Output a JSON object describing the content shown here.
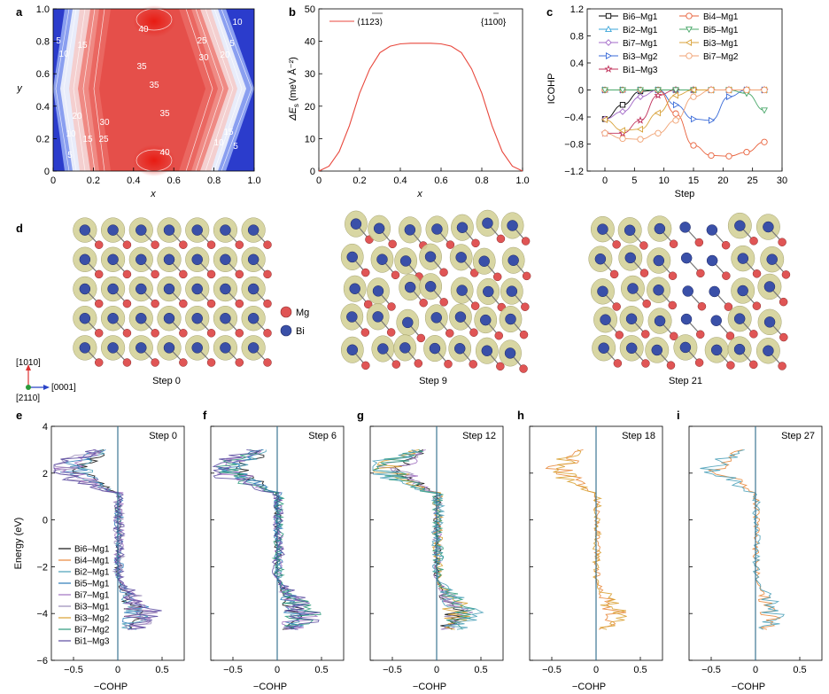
{
  "panels": {
    "a": {
      "label": "a",
      "xlabel": "x",
      "ylabel": "y",
      "xticks": [
        "0",
        "0.2",
        "0.4",
        "0.6",
        "0.8",
        "1.0"
      ],
      "yticks": [
        "0",
        "0.2",
        "0.4",
        "0.6",
        "0.8",
        "1.0"
      ],
      "contour_labels": [
        "40",
        "5",
        "15",
        "10",
        "35",
        "35",
        "35",
        "25",
        "20",
        "30",
        "10",
        "5",
        "20",
        "30",
        "10",
        "15",
        "25",
        "5",
        "40",
        "15",
        "10",
        "5"
      ]
    },
    "b": {
      "label": "b",
      "xlabel": "x",
      "ylabel": "ΔE_s (meV Å⁻²)",
      "ylabel_main": "ΔE",
      "ylabel_sub": "s",
      "ylabel_unit": " (meV Å⁻²)",
      "xticks": [
        "0",
        "0.2",
        "0.4",
        "0.6",
        "0.8",
        "1.0"
      ],
      "yticks": [
        "0",
        "10",
        "20",
        "30",
        "40",
        "50"
      ],
      "legend_line": "⟨1123⟩",
      "legend_right": "{1100}"
    },
    "c": {
      "label": "c",
      "xlabel": "Step",
      "ylabel": "ICOHP",
      "xticks": [
        "0",
        "5",
        "10",
        "15",
        "20",
        "25",
        "30"
      ],
      "yticks": [
        "1.2",
        "0.8",
        "0.4",
        "0",
        "−0.4",
        "−0.8",
        "−1.2"
      ]
    },
    "d": {
      "label": "d",
      "legend_mg": "Mg",
      "legend_bi": "Bi",
      "axis_up": "[1010]",
      "axis_right": "[0001]",
      "axis_out": "[2110]",
      "steps": [
        "Step 0",
        "Step 9",
        "Step 21"
      ]
    },
    "cohp": {
      "xlabel": "−COHP",
      "ylabel": "Energy (eV)",
      "yticks": [
        "4",
        "2",
        "0",
        "−2",
        "−4",
        "−6"
      ],
      "xticks": [
        "−0.5",
        "0",
        "0.5"
      ],
      "legend": [
        "Bi6–Mg1",
        "Bi4–Mg1",
        "Bi2–Mg1",
        "Bi5–Mg1",
        "Bi7–Mg1",
        "Bi3–Mg1",
        "Bi3–Mg2",
        "Bi7–Mg2",
        "Bi1–Mg3"
      ],
      "panels": [
        {
          "label": "e",
          "step": "Step 0"
        },
        {
          "label": "f",
          "step": "Step 6"
        },
        {
          "label": "g",
          "step": "Step 12"
        },
        {
          "label": "h",
          "step": "Step 18"
        },
        {
          "label": "i",
          "step": "Step 27"
        }
      ]
    }
  },
  "colors": {
    "red": "#e8473c",
    "blue": "#1f3fd6",
    "mg": "#e05555",
    "bi": "#3a50a8",
    "isosurface": "#d4d29a"
  },
  "chart_data": [
    {
      "type": "heatmap",
      "title": "",
      "xlabel": "x",
      "ylabel": "y",
      "xlim": [
        0,
        1
      ],
      "ylim": [
        0,
        1
      ],
      "contour_levels": [
        5,
        10,
        15,
        20,
        25,
        30,
        35,
        40
      ]
    },
    {
      "type": "line",
      "xlabel": "x",
      "ylabel": "ΔE_s (meV Å⁻²)",
      "xlim": [
        0,
        1
      ],
      "ylim": [
        0,
        50
      ],
      "series": [
        {
          "name": "⟨1123⟩",
          "x": [
            0,
            0.05,
            0.1,
            0.15,
            0.2,
            0.25,
            0.3,
            0.35,
            0.4,
            0.45,
            0.5,
            0.55,
            0.6,
            0.65,
            0.7,
            0.75,
            0.8,
            0.85,
            0.9,
            0.95,
            1.0
          ],
          "y": [
            0,
            1.5,
            6,
            14,
            24,
            31.5,
            36.5,
            38.5,
            39.2,
            39.4,
            39.4,
            39.4,
            39.2,
            38.5,
            36.5,
            31.5,
            24,
            14,
            6,
            1.5,
            0
          ]
        }
      ]
    },
    {
      "type": "line",
      "xlabel": "Step",
      "ylabel": "ICOHP",
      "xlim": [
        -3,
        30
      ],
      "ylim": [
        -1.2,
        1.2
      ],
      "series": [
        {
          "name": "Bi6–Mg1",
          "color": "#000000",
          "marker": "square",
          "x": [
            0,
            3,
            6,
            9,
            12,
            15,
            18,
            21,
            24,
            27
          ],
          "y": [
            -0.43,
            -0.22,
            -0.02,
            0,
            0,
            0,
            0,
            0,
            0,
            0
          ]
        },
        {
          "name": "Bi2–Mg1",
          "color": "#3aa5d8",
          "marker": "triangle-up",
          "x": [
            0,
            3,
            6,
            9,
            12,
            15,
            18,
            21,
            24,
            27
          ],
          "y": [
            0,
            0,
            0,
            0,
            0,
            0,
            0,
            0,
            0,
            0
          ]
        },
        {
          "name": "Bi7–Mg1",
          "color": "#a36ac8",
          "marker": "diamond",
          "x": [
            0,
            3,
            6,
            9,
            12,
            15,
            18,
            21,
            24,
            27
          ],
          "y": [
            -0.43,
            -0.32,
            -0.1,
            0,
            0,
            0,
            0,
            0,
            0,
            0
          ]
        },
        {
          "name": "Bi3–Mg2",
          "color": "#3a6bd8",
          "marker": "triangle-right",
          "x": [
            0,
            3,
            6,
            9,
            12,
            15,
            18,
            21,
            24,
            27
          ],
          "y": [
            0,
            0,
            0,
            0,
            -0.22,
            -0.43,
            -0.45,
            -0.1,
            0,
            0
          ]
        },
        {
          "name": "Bi1–Mg3",
          "color": "#c0305a",
          "marker": "star",
          "x": [
            0,
            3,
            6,
            9,
            12,
            15,
            18,
            21,
            24,
            27
          ],
          "y": [
            -0.64,
            -0.64,
            -0.45,
            -0.08,
            0,
            0,
            0,
            0,
            0,
            0
          ]
        },
        {
          "name": "Bi4–Mg1",
          "color": "#e8603a",
          "marker": "circle",
          "x": [
            0,
            3,
            6,
            9,
            12,
            15,
            18,
            21,
            24,
            27
          ],
          "y": [
            0,
            0,
            0,
            0,
            -0.35,
            -0.82,
            -0.97,
            -0.98,
            -0.92,
            -0.77
          ]
        },
        {
          "name": "Bi5–Mg1",
          "color": "#4aa86a",
          "marker": "triangle-down",
          "x": [
            0,
            3,
            6,
            9,
            12,
            15,
            18,
            21,
            24,
            27
          ],
          "y": [
            0,
            0,
            0,
            0,
            0,
            0,
            0,
            0,
            -0.05,
            -0.3
          ]
        },
        {
          "name": "Bi3–Mg1",
          "color": "#d8a23a",
          "marker": "triangle-left",
          "x": [
            0,
            3,
            6,
            9,
            12,
            15,
            18,
            21,
            24,
            27
          ],
          "y": [
            -0.44,
            -0.6,
            -0.58,
            -0.34,
            -0.08,
            0,
            0,
            0,
            0,
            0
          ]
        },
        {
          "name": "Bi7–Mg2",
          "color": "#f0a070",
          "marker": "circle",
          "x": [
            0,
            3,
            6,
            9,
            12,
            15,
            18,
            21,
            24,
            27
          ],
          "y": [
            -0.64,
            -0.72,
            -0.73,
            -0.64,
            -0.45,
            -0.1,
            0,
            0,
            0,
            0
          ]
        }
      ]
    }
  ]
}
